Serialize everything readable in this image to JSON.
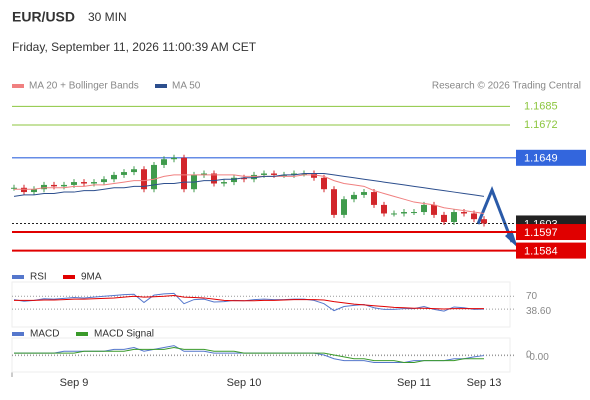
{
  "header": {
    "symbol": "EUR/USD",
    "interval": "30 MIN",
    "timestamp": "Friday, September 11, 2026 11:00:39 AM CET",
    "copyright": "Research © 2026 Trading Central"
  },
  "chart_data": {
    "type": "candlestick",
    "categories": [
      null,
      null,
      null,
      null,
      null,
      null,
      "Sep 9",
      null,
      null,
      null,
      null,
      null,
      null,
      null,
      null,
      null,
      null,
      null,
      null,
      null,
      null,
      null,
      null,
      "Sep 10",
      null,
      null,
      null,
      null,
      null,
      null,
      null,
      null,
      null,
      null,
      null,
      null,
      null,
      null,
      null,
      null,
      "Sep 11",
      null,
      null,
      null,
      null,
      null,
      null,
      "Sep 13"
    ],
    "close": [
      1.1628,
      1.1625,
      1.1627,
      1.163,
      1.1629,
      1.163,
      1.1632,
      1.1631,
      1.1632,
      1.1634,
      1.1637,
      1.1639,
      1.1641,
      1.1627,
      1.1644,
      1.1648,
      1.1649,
      1.1627,
      1.1637,
      1.1638,
      1.1631,
      1.1632,
      1.1635,
      1.1634,
      1.1637,
      1.1638,
      1.1637,
      1.1637,
      1.1638,
      1.1638,
      1.1635,
      1.1627,
      1.1609,
      1.162,
      1.1623,
      1.1625,
      1.1616,
      1.161,
      1.161,
      1.1611,
      1.1611,
      1.1616,
      1.1609,
      1.1604,
      1.1611,
      1.161,
      1.1606,
      1.1603
    ],
    "colors": {
      "up": "#3f9b4c",
      "down": "#d2262b"
    },
    "ylim": [
      1.1576,
      1.1693
    ],
    "series": [
      {
        "name": "MA 20 + Bollinger Bands",
        "color": "#f08080",
        "values": [
          1.1627,
          1.1627,
          1.1627,
          1.1628,
          1.1628,
          1.1628,
          1.1629,
          1.1629,
          1.163,
          1.163,
          1.1631,
          1.1632,
          1.1633,
          1.1633,
          1.1634,
          1.1636,
          1.1637,
          1.1637,
          1.1637,
          1.1637,
          1.1637,
          1.1637,
          1.1637,
          1.1636,
          1.1636,
          1.1636,
          1.1636,
          1.1636,
          1.1636,
          1.1637,
          1.1637,
          1.1636,
          1.1633,
          1.1631,
          1.163,
          1.1629,
          1.1626,
          1.1624,
          1.1622,
          1.162,
          1.1618,
          1.1617,
          1.1616,
          1.1614,
          1.1613,
          1.1612,
          1.1611,
          1.161
        ]
      },
      {
        "name": "MA 50",
        "color": "#2d4f8e",
        "values": [
          1.1622,
          1.1623,
          1.1623,
          1.1624,
          1.1624,
          1.1625,
          1.1625,
          1.1626,
          1.1626,
          1.1627,
          1.1628,
          1.1628,
          1.1629,
          1.1629,
          1.163,
          1.1631,
          1.1631,
          1.1632,
          1.1632,
          1.1633,
          1.1633,
          1.1634,
          1.1634,
          1.1635,
          1.1635,
          1.1636,
          1.1636,
          1.1637,
          1.1637,
          1.1638,
          1.1638,
          1.1638,
          1.1637,
          1.1636,
          1.1635,
          1.1634,
          1.1633,
          1.1632,
          1.1631,
          1.163,
          1.1629,
          1.1628,
          1.1627,
          1.1626,
          1.1625,
          1.1624,
          1.1623,
          1.1622
        ]
      }
    ],
    "levels": [
      {
        "value": 1.1685,
        "color": "#8cc63f",
        "boxed": false
      },
      {
        "value": 1.1672,
        "color": "#8cc63f",
        "boxed": false
      },
      {
        "value": 1.1649,
        "color": "#3366dd",
        "boxed": true
      },
      {
        "value": 1.1603,
        "color": "#222222",
        "boxed": true
      },
      {
        "value": 1.1597,
        "color": "#e00000",
        "boxed": true
      },
      {
        "value": 1.1584,
        "color": "#e00000",
        "boxed": true
      }
    ],
    "rsi": {
      "ylim": [
        0,
        100
      ],
      "yticks": [
        70,
        {
          "value": 38.6,
          "label": "38.60"
        }
      ],
      "series": [
        {
          "name": "RSI",
          "color": "#5577cc",
          "values": [
            62,
            58,
            60,
            64,
            63,
            65,
            67,
            66,
            68,
            70,
            72,
            74,
            75,
            55,
            73,
            76,
            77,
            52,
            62,
            63,
            56,
            57,
            60,
            59,
            62,
            63,
            62,
            62,
            63,
            63,
            60,
            52,
            35,
            45,
            48,
            50,
            42,
            38,
            38,
            40,
            40,
            45,
            38,
            34,
            44,
            42,
            38,
            38.6
          ]
        },
        {
          "name": "9MA",
          "color": "#e00000",
          "values": [
            60,
            60,
            60,
            61,
            61,
            62,
            63,
            63,
            64,
            65,
            66,
            68,
            70,
            68,
            69,
            70,
            72,
            68,
            67,
            66,
            63,
            60,
            59,
            59,
            59,
            60,
            60,
            61,
            62,
            62,
            62,
            61,
            57,
            54,
            51,
            49,
            47,
            45,
            43,
            42,
            41,
            41,
            40,
            39,
            40,
            40,
            40,
            40
          ]
        }
      ]
    },
    "macd": {
      "ylim": [
        -0.0008,
        0.0008
      ],
      "yticks": [
        0,
        {
          "value": -3e-05,
          "label": "-0.00"
        }
      ],
      "series": [
        {
          "name": "MACD",
          "color": "#5577cc",
          "values": [
            0.0001,
            0.0001,
            0.0001,
            0.0001,
            0.0001,
            0.0002,
            0.0002,
            0.0002,
            0.0002,
            0.0002,
            0.0003,
            0.0003,
            0.0004,
            0.0002,
            0.0003,
            0.0004,
            0.0005,
            0.0002,
            0.0002,
            0.0002,
            0.0001,
            0.0001,
            0.0001,
            0.0001,
            0.0001,
            0.0001,
            0.0001,
            0.0001,
            0.0001,
            0.0001,
            0.0001,
            0,
            -0.0002,
            -0.0003,
            -0.0003,
            -0.0003,
            -0.0004,
            -0.0004,
            -0.0004,
            -0.0004,
            -0.0003,
            -0.0003,
            -0.0003,
            -0.0003,
            -0.0002,
            -0.0002,
            -0.0001,
            -3e-05
          ]
        },
        {
          "name": "MACD Signal",
          "color": "#3a9a2a",
          "values": [
            0.0001,
            0.0001,
            0.0001,
            0.0001,
            0.0001,
            0.0001,
            0.0001,
            0.0002,
            0.0002,
            0.0002,
            0.0002,
            0.0002,
            0.0003,
            0.0003,
            0.0003,
            0.0003,
            0.0004,
            0.0003,
            0.0003,
            0.0003,
            0.0002,
            0.0002,
            0.0002,
            0.0001,
            0.0001,
            0.0001,
            0.0001,
            0.0001,
            0.0001,
            0.0001,
            0.0001,
            0.0001,
            0,
            -0.0001,
            -0.0002,
            -0.0002,
            -0.0003,
            -0.0003,
            -0.0003,
            -0.0004,
            -0.0004,
            -0.0003,
            -0.0003,
            -0.0003,
            -0.0003,
            -0.0002,
            -0.0002,
            -0.0002
          ]
        }
      ]
    }
  }
}
